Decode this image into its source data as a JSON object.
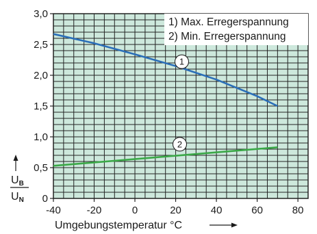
{
  "chart_data": {
    "type": "line",
    "xlabel": "Umgebungstemperatur °C",
    "ylabel": {
      "numerator": "U",
      "numerator_sub": "B",
      "denominator": "U",
      "denominator_sub": "N"
    },
    "xlim": [
      -40,
      85
    ],
    "ylim": [
      0,
      3.0
    ],
    "x_ticks": [
      "-40",
      "-20",
      "0",
      "20",
      "40",
      "60",
      "80"
    ],
    "y_ticks": [
      "0",
      "0,5",
      "1,0",
      "1,5",
      "2,0",
      "2,5",
      "3,0"
    ],
    "grid": true,
    "legend_position": "top-right",
    "legend": [
      "1) Max. Erregerspannung",
      "2) Min. Erregerspannung"
    ],
    "series": [
      {
        "name": "1",
        "color": "#2a6eb8",
        "x": [
          -40,
          -20,
          0,
          20,
          40,
          60,
          70
        ],
        "y": [
          2.67,
          2.52,
          2.34,
          2.15,
          1.93,
          1.66,
          1.5
        ]
      },
      {
        "name": "2",
        "color": "#3aa847",
        "x": [
          -40,
          70
        ],
        "y": [
          0.53,
          0.83
        ]
      }
    ],
    "annotations": [
      {
        "text": "1",
        "x": 23,
        "y": 2.22
      },
      {
        "text": "2",
        "x": 22,
        "y": 0.88
      }
    ]
  },
  "colors": {
    "plot_background": "#cde8dc",
    "grid": "#222222"
  }
}
